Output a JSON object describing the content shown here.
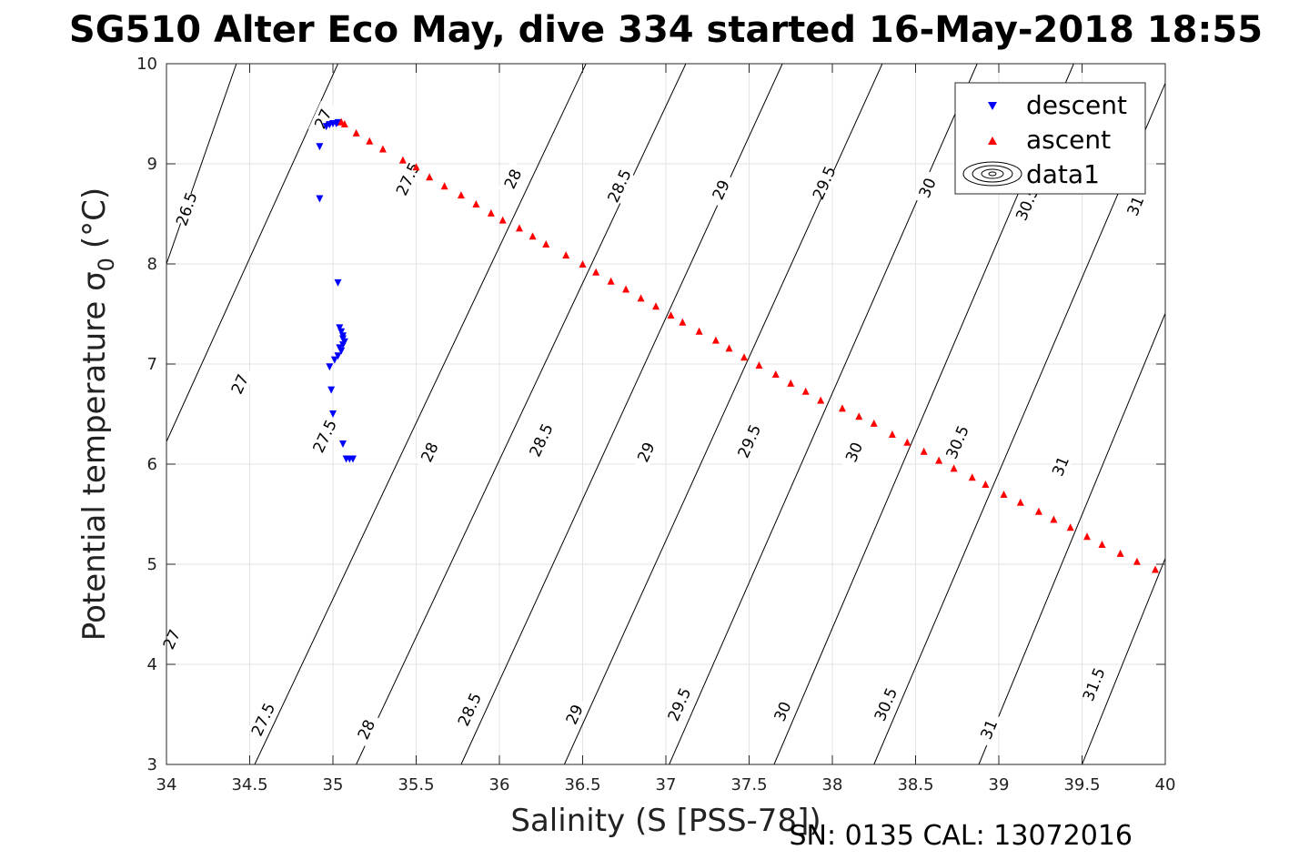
{
  "title": "SG510 Alter Eco May, dive 334 started 16-May-2018 18:55",
  "footer": "SN: 0135  CAL: 13072016",
  "chart_data": {
    "type": "scatter",
    "title": "SG510 Alter Eco May, dive 334 started 16-May-2018 18:55",
    "xlabel": "Salinity (S [PSS-78])",
    "ylabel": "Potential temperature σ₀ (°C)",
    "ylabel_main": "Potential temperature σ",
    "ylabel_sub": "0",
    "ylabel_unit": "(°C)",
    "xlim": [
      34,
      40
    ],
    "ylim": [
      3,
      10
    ],
    "xticks": [
      34,
      34.5,
      35,
      35.5,
      36,
      36.5,
      37,
      37.5,
      38,
      38.5,
      39,
      39.5,
      40
    ],
    "xtick_labels": [
      "34",
      "34.5",
      "35",
      "35.5",
      "36",
      "36.5",
      "37",
      "37.5",
      "38",
      "38.5",
      "39",
      "39.5",
      "40"
    ],
    "yticks": [
      3,
      4,
      5,
      6,
      7,
      8,
      9,
      10
    ],
    "ytick_labels": [
      "3",
      "4",
      "5",
      "6",
      "7",
      "8",
      "9",
      "10"
    ],
    "grid": true,
    "legend_position": "top-right",
    "legend": [
      "descent",
      "ascent",
      "data1"
    ],
    "series": [
      {
        "name": "descent",
        "color": "#0000ff",
        "marker": "triangle-down",
        "points": [
          [
            34.92,
            9.17
          ],
          [
            34.92,
            8.65
          ],
          [
            34.96,
            9.37
          ],
          [
            34.98,
            9.39
          ],
          [
            35.0,
            9.4
          ],
          [
            35.02,
            9.4
          ],
          [
            35.03,
            9.41
          ],
          [
            35.03,
            7.81
          ],
          [
            35.04,
            7.36
          ],
          [
            35.05,
            7.32
          ],
          [
            35.06,
            7.28
          ],
          [
            35.06,
            7.25
          ],
          [
            35.07,
            7.22
          ],
          [
            35.06,
            7.19
          ],
          [
            35.04,
            7.16
          ],
          [
            35.05,
            7.13
          ],
          [
            35.03,
            7.08
          ],
          [
            35.01,
            7.04
          ],
          [
            34.98,
            6.97
          ],
          [
            34.99,
            6.74
          ],
          [
            35.0,
            6.5
          ],
          [
            35.06,
            6.2
          ],
          [
            35.08,
            6.05
          ],
          [
            35.1,
            6.05
          ],
          [
            35.12,
            6.05
          ]
        ]
      },
      {
        "name": "ascent",
        "color": "#ff0000",
        "marker": "triangle-up",
        "points": [
          [
            35.05,
            9.42
          ],
          [
            35.07,
            9.4
          ],
          [
            35.14,
            9.31
          ],
          [
            35.22,
            9.23
          ],
          [
            35.3,
            9.15
          ],
          [
            35.42,
            9.04
          ],
          [
            35.5,
            8.97
          ],
          [
            35.58,
            8.87
          ],
          [
            35.67,
            8.78
          ],
          [
            35.77,
            8.69
          ],
          [
            35.86,
            8.6
          ],
          [
            35.95,
            8.51
          ],
          [
            36.02,
            8.44
          ],
          [
            36.12,
            8.36
          ],
          [
            36.2,
            8.28
          ],
          [
            36.28,
            8.2
          ],
          [
            36.4,
            8.09
          ],
          [
            36.5,
            8.0
          ],
          [
            36.58,
            7.92
          ],
          [
            36.67,
            7.83
          ],
          [
            36.76,
            7.75
          ],
          [
            36.85,
            7.66
          ],
          [
            36.94,
            7.58
          ],
          [
            37.03,
            7.49
          ],
          [
            37.1,
            7.42
          ],
          [
            37.2,
            7.33
          ],
          [
            37.3,
            7.24
          ],
          [
            37.38,
            7.16
          ],
          [
            37.47,
            7.07
          ],
          [
            37.56,
            6.99
          ],
          [
            37.66,
            6.9
          ],
          [
            37.75,
            6.81
          ],
          [
            37.84,
            6.73
          ],
          [
            37.93,
            6.64
          ],
          [
            38.06,
            6.56
          ],
          [
            38.16,
            6.48
          ],
          [
            38.25,
            6.41
          ],
          [
            38.36,
            6.3
          ],
          [
            38.45,
            6.22
          ],
          [
            38.55,
            6.13
          ],
          [
            38.64,
            6.04
          ],
          [
            38.73,
            5.96
          ],
          [
            38.84,
            5.87
          ],
          [
            38.92,
            5.8
          ],
          [
            39.03,
            5.7
          ],
          [
            39.13,
            5.62
          ],
          [
            39.24,
            5.53
          ],
          [
            39.33,
            5.45
          ],
          [
            39.43,
            5.37
          ],
          [
            39.53,
            5.28
          ],
          [
            39.62,
            5.2
          ],
          [
            39.73,
            5.11
          ],
          [
            39.83,
            5.03
          ],
          [
            39.94,
            4.95
          ]
        ]
      }
    ],
    "contours": [
      {
        "label": "26.5",
        "x_at_8": 34.0,
        "x_at_10": 34.42,
        "label_at": [
          [
            34.12,
            8.55
          ]
        ]
      },
      {
        "label": "27",
        "x_at_3": 33.12,
        "x_at_10": 35.03,
        "label_at": [
          [
            34.03,
            4.25
          ],
          [
            34.44,
            6.8
          ],
          [
            34.94,
            9.45
          ]
        ]
      },
      {
        "label": "27.5",
        "x_at_3": 34.53,
        "x_at_10": 36.52,
        "label_at": [
          [
            34.58,
            3.45
          ],
          [
            34.95,
            6.28
          ],
          [
            35.45,
            8.85
          ]
        ]
      },
      {
        "label": "28",
        "x_at_3": 35.14,
        "x_at_10": 37.12,
        "label_at": [
          [
            35.2,
            3.35
          ],
          [
            35.58,
            6.12
          ],
          [
            36.08,
            8.85
          ]
        ]
      },
      {
        "label": "28.5",
        "x_at_3": 35.77,
        "x_at_10": 37.7,
        "label_at": [
          [
            35.82,
            3.55
          ],
          [
            36.25,
            6.24
          ],
          [
            36.72,
            8.78
          ]
        ]
      },
      {
        "label": "29",
        "x_at_3": 36.39,
        "x_at_10": 38.3,
        "label_at": [
          [
            36.45,
            3.5
          ],
          [
            36.88,
            6.12
          ],
          [
            37.33,
            8.74
          ]
        ]
      },
      {
        "label": "29.5",
        "x_at_3": 37.02,
        "x_at_10": 38.87,
        "label_at": [
          [
            37.08,
            3.6
          ],
          [
            37.5,
            6.23
          ],
          [
            37.95,
            8.81
          ]
        ]
      },
      {
        "label": "30",
        "x_at_3": 37.65,
        "x_at_10": 39.45,
        "label_at": [
          [
            37.7,
            3.53
          ],
          [
            38.13,
            6.12
          ],
          [
            38.57,
            8.76
          ]
        ]
      },
      {
        "label": "30.5",
        "x_at_3": 38.25,
        "x_at_10": 40.05,
        "label_at": [
          [
            38.32,
            3.6
          ],
          [
            38.75,
            6.22
          ],
          [
            39.17,
            8.6
          ]
        ]
      },
      {
        "label": "31",
        "x_at_3": 38.88,
        "x_at_10": 40.62,
        "label_at": [
          [
            38.94,
            3.35
          ],
          [
            39.37,
            5.98
          ],
          [
            39.82,
            8.58
          ]
        ]
      },
      {
        "label": "31.5",
        "x_at_3": 39.5,
        "x_at_10": 41.2,
        "label_at": [
          [
            39.57,
            3.8
          ]
        ]
      }
    ]
  }
}
